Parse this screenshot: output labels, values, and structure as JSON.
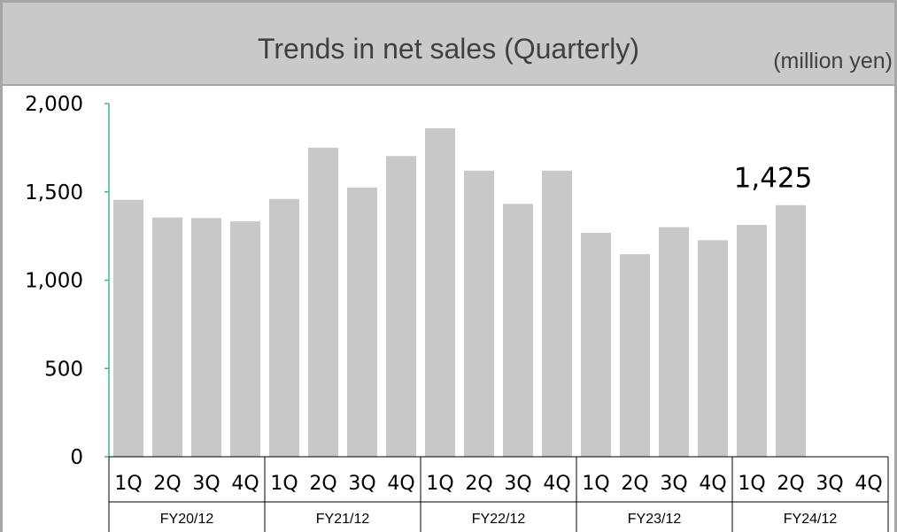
{
  "header": {
    "title": "Trends in net sales (Quarterly)",
    "unit": "(million yen)"
  },
  "colors": {
    "header_bg": "#c9c9c9",
    "bar": "#c8c8c8",
    "axis": "#3cb88a",
    "border": "#a6a6a6"
  },
  "chart_data": {
    "type": "bar",
    "title": "Trends in net sales (Quarterly)",
    "ylabel": "(million yen)",
    "ylim": [
      0,
      2000
    ],
    "yticks": [
      0,
      500,
      1000,
      1500,
      2000
    ],
    "ytick_labels": [
      "0",
      "500",
      "1,000",
      "1,500",
      "2,000"
    ],
    "grid": false,
    "groups": [
      "FY20/12",
      "FY21/12",
      "FY22/12",
      "FY23/12",
      "FY24/12"
    ],
    "quarters": [
      "1Q",
      "2Q",
      "3Q",
      "4Q"
    ],
    "values": [
      [
        1455,
        1355,
        1352,
        1333
      ],
      [
        1460,
        1750,
        1525,
        1703
      ],
      [
        1860,
        1620,
        1432,
        1620
      ],
      [
        1268,
        1147,
        1300,
        1226
      ],
      [
        1313,
        1425,
        null,
        null
      ]
    ],
    "data_labels": [
      {
        "group": 4,
        "quarter": 1,
        "text": "1,425"
      }
    ]
  }
}
